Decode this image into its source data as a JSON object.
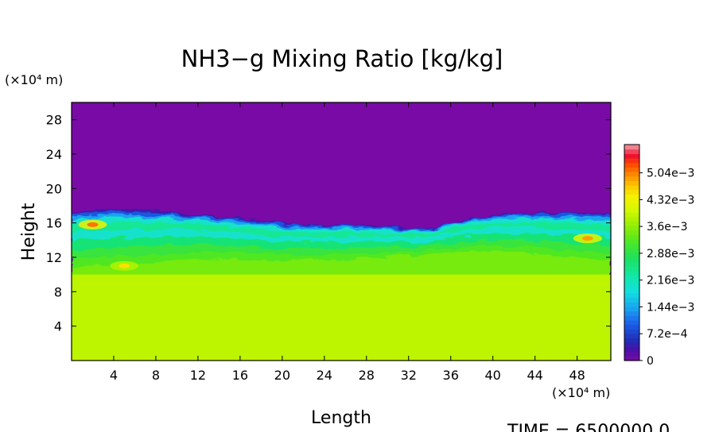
{
  "chart_data": {
    "type": "heatmap",
    "title": "NH3−g Mixing Ratio [kg/kg]",
    "xlabel": "Length",
    "ylabel": "Height",
    "x_unit": "(×10⁴ m)",
    "y_unit": "(×10⁴ m)",
    "xlim": [
      0,
      51.2
    ],
    "ylim": [
      0,
      30
    ],
    "x_ticks": [
      "4",
      "8",
      "12",
      "16",
      "20",
      "24",
      "28",
      "32",
      "36",
      "40",
      "44",
      "48"
    ],
    "y_ticks": [
      "4",
      "8",
      "12",
      "16",
      "20",
      "24",
      "28"
    ],
    "colorbar": {
      "range": [
        0,
        0.0058
      ],
      "labels": [
        "0",
        "7.2e−4",
        "1.44e−3",
        "2.16e−3",
        "2.88e−3",
        "3.6e−3",
        "4.32e−3",
        "5.04e−3"
      ],
      "label_values": [
        0,
        0.00072,
        0.00144,
        0.00216,
        0.00288,
        0.0036,
        0.00432,
        0.00504
      ]
    },
    "field": {
      "lower_layer_value": 0.0039,
      "lower_layer_top_height": 10,
      "upper_value": 0,
      "cloud_top_height": [
        {
          "x": 0,
          "y": 17.2
        },
        {
          "x": 4,
          "y": 17.6
        },
        {
          "x": 8,
          "y": 17.4
        },
        {
          "x": 12,
          "y": 17.0
        },
        {
          "x": 16,
          "y": 16.6
        },
        {
          "x": 20,
          "y": 16.0
        },
        {
          "x": 24,
          "y": 15.8
        },
        {
          "x": 28,
          "y": 15.8
        },
        {
          "x": 32,
          "y": 15.4
        },
        {
          "x": 34,
          "y": 15.4
        },
        {
          "x": 36,
          "y": 16.2
        },
        {
          "x": 40,
          "y": 17.0
        },
        {
          "x": 44,
          "y": 17.2
        },
        {
          "x": 48,
          "y": 17.2
        },
        {
          "x": 51.2,
          "y": 17.0
        }
      ],
      "cloud_base_height": [
        {
          "x": 0,
          "y": 10.0
        },
        {
          "x": 4,
          "y": 10.2
        },
        {
          "x": 8,
          "y": 10.6
        },
        {
          "x": 12,
          "y": 11.2
        },
        {
          "x": 16,
          "y": 11.2
        },
        {
          "x": 20,
          "y": 11.0
        },
        {
          "x": 24,
          "y": 11.2
        },
        {
          "x": 28,
          "y": 11.4
        },
        {
          "x": 32,
          "y": 11.8
        },
        {
          "x": 36,
          "y": 12.0
        },
        {
          "x": 40,
          "y": 12.2
        },
        {
          "x": 44,
          "y": 11.8
        },
        {
          "x": 48,
          "y": 11.2
        },
        {
          "x": 51.2,
          "y": 11.0
        }
      ],
      "maxima": [
        {
          "x": 2,
          "y": 15.8,
          "value": 0.0051
        },
        {
          "x": 5,
          "y": 11.0,
          "value": 0.0045
        },
        {
          "x": 49,
          "y": 14.2,
          "value": 0.0049
        }
      ]
    },
    "grid": false,
    "legend": "colorbar-right"
  },
  "footer": {
    "time_label": "TIME = 6500000.0"
  }
}
